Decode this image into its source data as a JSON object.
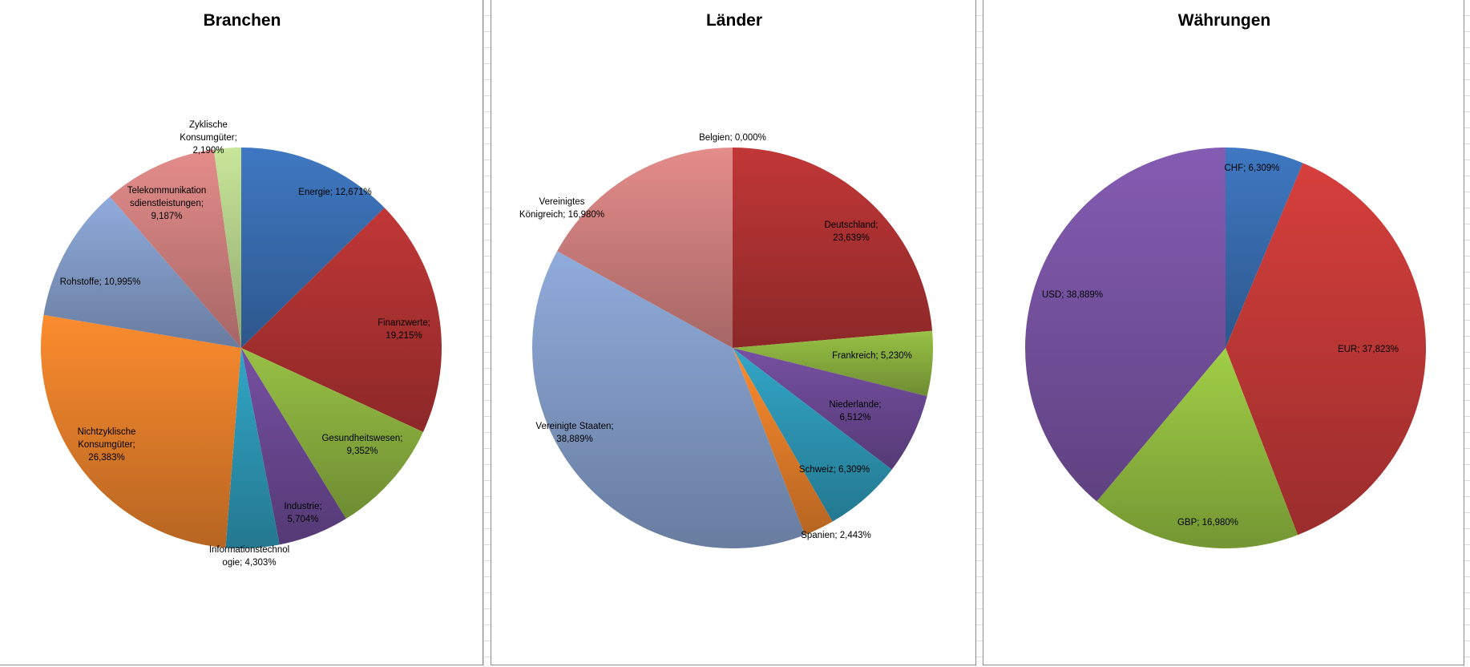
{
  "chart_data": [
    {
      "type": "pie",
      "title": "Branchen",
      "start": "top",
      "slices": [
        {
          "name": "Energie",
          "value": 12.671,
          "label": [
            "Energie; 12,671%"
          ],
          "color": "#3a6fb4"
        },
        {
          "name": "Finanzwerte",
          "value": 19.215,
          "label": [
            "Finanzwerte;",
            "19,215%"
          ],
          "color": "#b33333"
        },
        {
          "name": "Gesundheitswesen",
          "value": 9.352,
          "label": [
            "Gesundheitswesen;",
            "9,352%"
          ],
          "color": "#8db340"
        },
        {
          "name": "Industrie",
          "value": 5.704,
          "label": [
            "Industrie;",
            "5,704%"
          ],
          "color": "#6d4a96"
        },
        {
          "name": "Informationstechnologie",
          "value": 4.303,
          "label": [
            "Informationstechnol",
            "ogie; 4,303%"
          ],
          "color": "#2e9ab8"
        },
        {
          "name": "Nichtzyklische Konsumgüter",
          "value": 26.383,
          "label": [
            "Nichtzyklische",
            "Konsumgüter;",
            "26,383%"
          ],
          "color": "#e9822b"
        },
        {
          "name": "Rohstoffe",
          "value": 10.995,
          "label": [
            "Rohstoffe; 10,995%"
          ],
          "color": "#859fcc"
        },
        {
          "name": "Telekommunikationsdienstleistungen",
          "value": 9.187,
          "label": [
            "Telekommunikation",
            "sdienstleistungen;",
            "9,187%"
          ],
          "color": "#d38381"
        },
        {
          "name": "Zyklische Konsumgüter",
          "value": 2.19,
          "label": [
            "Zyklische",
            "Konsumgüter;",
            "2,190%"
          ],
          "color": "#b9d58e"
        }
      ]
    },
    {
      "type": "pie",
      "title": "Länder",
      "start": "top",
      "slices": [
        {
          "name": "Belgien",
          "value": 0.0,
          "label": [
            "Belgien; 0,000%"
          ],
          "color": "#3a6fb4"
        },
        {
          "name": "Deutschland",
          "value": 23.639,
          "label": [
            "Deutschland;",
            "23,639%"
          ],
          "color": "#b33333"
        },
        {
          "name": "Frankreich",
          "value": 5.23,
          "label": [
            "Frankreich; 5,230%"
          ],
          "color": "#8db340"
        },
        {
          "name": "Niederlande",
          "value": 6.512,
          "label": [
            "Niederlande;",
            "6,512%"
          ],
          "color": "#6d4a96"
        },
        {
          "name": "Schweiz",
          "value": 6.309,
          "label": [
            "Schweiz; 6,309%"
          ],
          "color": "#2e9ab8"
        },
        {
          "name": "Spanien",
          "value": 2.443,
          "label": [
            "Spanien; 2,443%"
          ],
          "color": "#e9822b"
        },
        {
          "name": "Vereinigte Staaten",
          "value": 38.889,
          "label": [
            "Vereinigte Staaten;",
            "38,889%"
          ],
          "color": "#859fcc"
        },
        {
          "name": "Vereinigtes Königreich",
          "value": 16.98,
          "label": [
            "Vereinigtes",
            "Königreich; 16,980%"
          ],
          "color": "#d38381"
        }
      ]
    },
    {
      "type": "pie",
      "title": "Währungen",
      "start": "top",
      "slices": [
        {
          "name": "CHF",
          "value": 6.309,
          "label": [
            "CHF; 6,309%"
          ],
          "color": "#3a6fb4"
        },
        {
          "name": "EUR",
          "value": 37.823,
          "label": [
            "EUR;  37,823%"
          ],
          "color": "#c63a38"
        },
        {
          "name": "GBP",
          "value": 16.98,
          "label": [
            "GBP; 16,980%"
          ],
          "color": "#95c042"
        },
        {
          "name": "USD",
          "value": 38.889,
          "label": [
            "USD; 38,889%"
          ],
          "color": "#7a55a6"
        }
      ]
    }
  ]
}
